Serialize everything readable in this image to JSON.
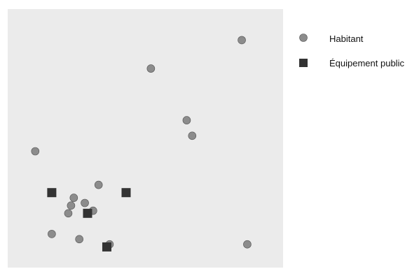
{
  "chart_data": {
    "type": "scatter",
    "xlim": [
      0,
      100
    ],
    "ylim": [
      0,
      100
    ],
    "grid": false,
    "legend_position": "top-right",
    "panel_color": "#ebebeb",
    "series": [
      {
        "name": "Habitant",
        "marker": "circle",
        "color": "#8c8c8c",
        "points": [
          {
            "x": 85,
            "y": 88
          },
          {
            "x": 52,
            "y": 77
          },
          {
            "x": 65,
            "y": 57
          },
          {
            "x": 67,
            "y": 51
          },
          {
            "x": 10,
            "y": 45
          },
          {
            "x": 33,
            "y": 32
          },
          {
            "x": 24,
            "y": 27
          },
          {
            "x": 28,
            "y": 25
          },
          {
            "x": 23,
            "y": 24
          },
          {
            "x": 31,
            "y": 22
          },
          {
            "x": 22,
            "y": 21
          },
          {
            "x": 16,
            "y": 13
          },
          {
            "x": 26,
            "y": 11
          },
          {
            "x": 37,
            "y": 9
          },
          {
            "x": 87,
            "y": 9
          }
        ]
      },
      {
        "name": "Équipement public",
        "marker": "square",
        "color": "#333333",
        "points": [
          {
            "x": 16,
            "y": 29
          },
          {
            "x": 43,
            "y": 29
          },
          {
            "x": 29,
            "y": 21
          },
          {
            "x": 36,
            "y": 8
          }
        ]
      }
    ]
  }
}
